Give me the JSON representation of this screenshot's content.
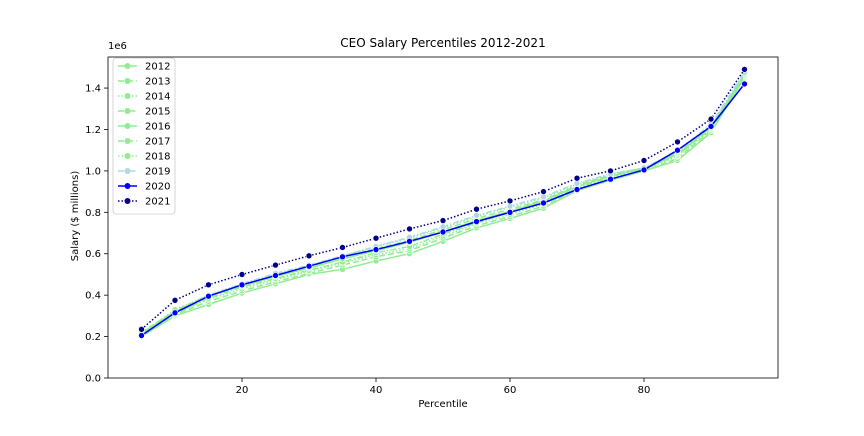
{
  "chart_data": {
    "type": "line",
    "title": "CEO Salary Percentiles 2012-2021",
    "xlabel": "Percentile",
    "ylabel": "Salary ($ millions)",
    "y_offset_label": "1e6",
    "xlim": [
      0,
      100
    ],
    "ylim": [
      0,
      1550000
    ],
    "x_ticks": [
      20,
      40,
      60,
      80
    ],
    "y_ticks": [
      0,
      200000,
      400000,
      600000,
      800000,
      1000000,
      1200000,
      1400000
    ],
    "y_tick_labels": [
      "0.0",
      "0.2",
      "0.4",
      "0.6",
      "0.8",
      "1.0",
      "1.2",
      "1.4"
    ],
    "grid": false,
    "legend_position": "top-left",
    "x": [
      5,
      10,
      15,
      20,
      25,
      30,
      35,
      40,
      45,
      50,
      55,
      60,
      65,
      70,
      75,
      80,
      85,
      90,
      95
    ],
    "series": [
      {
        "name": "2012",
        "color": "#90ee90",
        "dash": "solid",
        "values": [
          200000,
          300000,
          355000,
          410000,
          455000,
          500000,
          525000,
          565000,
          600000,
          660000,
          725000,
          770000,
          820000,
          905000,
          955000,
          1000000,
          1050000,
          1185000,
          1450000
        ]
      },
      {
        "name": "2013",
        "color": "#90ee90",
        "dash": "dashed",
        "values": [
          205000,
          305000,
          370000,
          420000,
          465000,
          505000,
          545000,
          585000,
          615000,
          675000,
          735000,
          780000,
          830000,
          910000,
          960000,
          1000000,
          1060000,
          1195000,
          1455000
        ]
      },
      {
        "name": "2014",
        "color": "#90ee90",
        "dash": "dotted",
        "values": [
          210000,
          315000,
          380000,
          430000,
          475000,
          515000,
          555000,
          595000,
          625000,
          685000,
          745000,
          790000,
          840000,
          915000,
          965000,
          1005000,
          1070000,
          1200000,
          1460000
        ]
      },
      {
        "name": "2015",
        "color": "#90ee90",
        "dash": "dashdot",
        "values": [
          210000,
          310000,
          385000,
          440000,
          480000,
          520000,
          560000,
          605000,
          635000,
          695000,
          750000,
          800000,
          850000,
          920000,
          970000,
          1010000,
          1075000,
          1205000,
          1465000
        ]
      },
      {
        "name": "2016",
        "color": "#90ee90",
        "dash": "solid",
        "values": [
          215000,
          320000,
          395000,
          445000,
          490000,
          530000,
          575000,
          615000,
          655000,
          705000,
          760000,
          805000,
          855000,
          925000,
          975000,
          1010000,
          1080000,
          1210000,
          1460000
        ]
      },
      {
        "name": "2017",
        "color": "#90ee90",
        "dash": "dashed",
        "values": [
          220000,
          325000,
          400000,
          450000,
          495000,
          535000,
          585000,
          625000,
          665000,
          715000,
          770000,
          815000,
          860000,
          930000,
          980000,
          1015000,
          1085000,
          1215000,
          1465000
        ]
      },
      {
        "name": "2018",
        "color": "#90ee90",
        "dash": "dotted",
        "values": [
          215000,
          330000,
          400000,
          450000,
          500000,
          540000,
          590000,
          635000,
          675000,
          725000,
          780000,
          825000,
          870000,
          935000,
          985000,
          1015000,
          1090000,
          1220000,
          1470000
        ]
      },
      {
        "name": "2019",
        "color": "#add8e6",
        "dash": "dashdot",
        "values": [
          205000,
          315000,
          400000,
          455000,
          505000,
          545000,
          590000,
          635000,
          680000,
          730000,
          785000,
          830000,
          875000,
          940000,
          985000,
          1015000,
          1095000,
          1225000,
          1475000
        ]
      },
      {
        "name": "2020",
        "color": "#0000ff",
        "dash": "solid",
        "values": [
          205000,
          315000,
          395000,
          450000,
          495000,
          540000,
          585000,
          620000,
          660000,
          705000,
          755000,
          800000,
          845000,
          910000,
          960000,
          1005000,
          1100000,
          1215000,
          1420000
        ]
      },
      {
        "name": "2021",
        "color": "#00008b",
        "dash": "dotted",
        "values": [
          235000,
          375000,
          450000,
          500000,
          545000,
          590000,
          630000,
          675000,
          720000,
          760000,
          815000,
          855000,
          900000,
          965000,
          1000000,
          1050000,
          1140000,
          1250000,
          1490000
        ]
      }
    ]
  }
}
